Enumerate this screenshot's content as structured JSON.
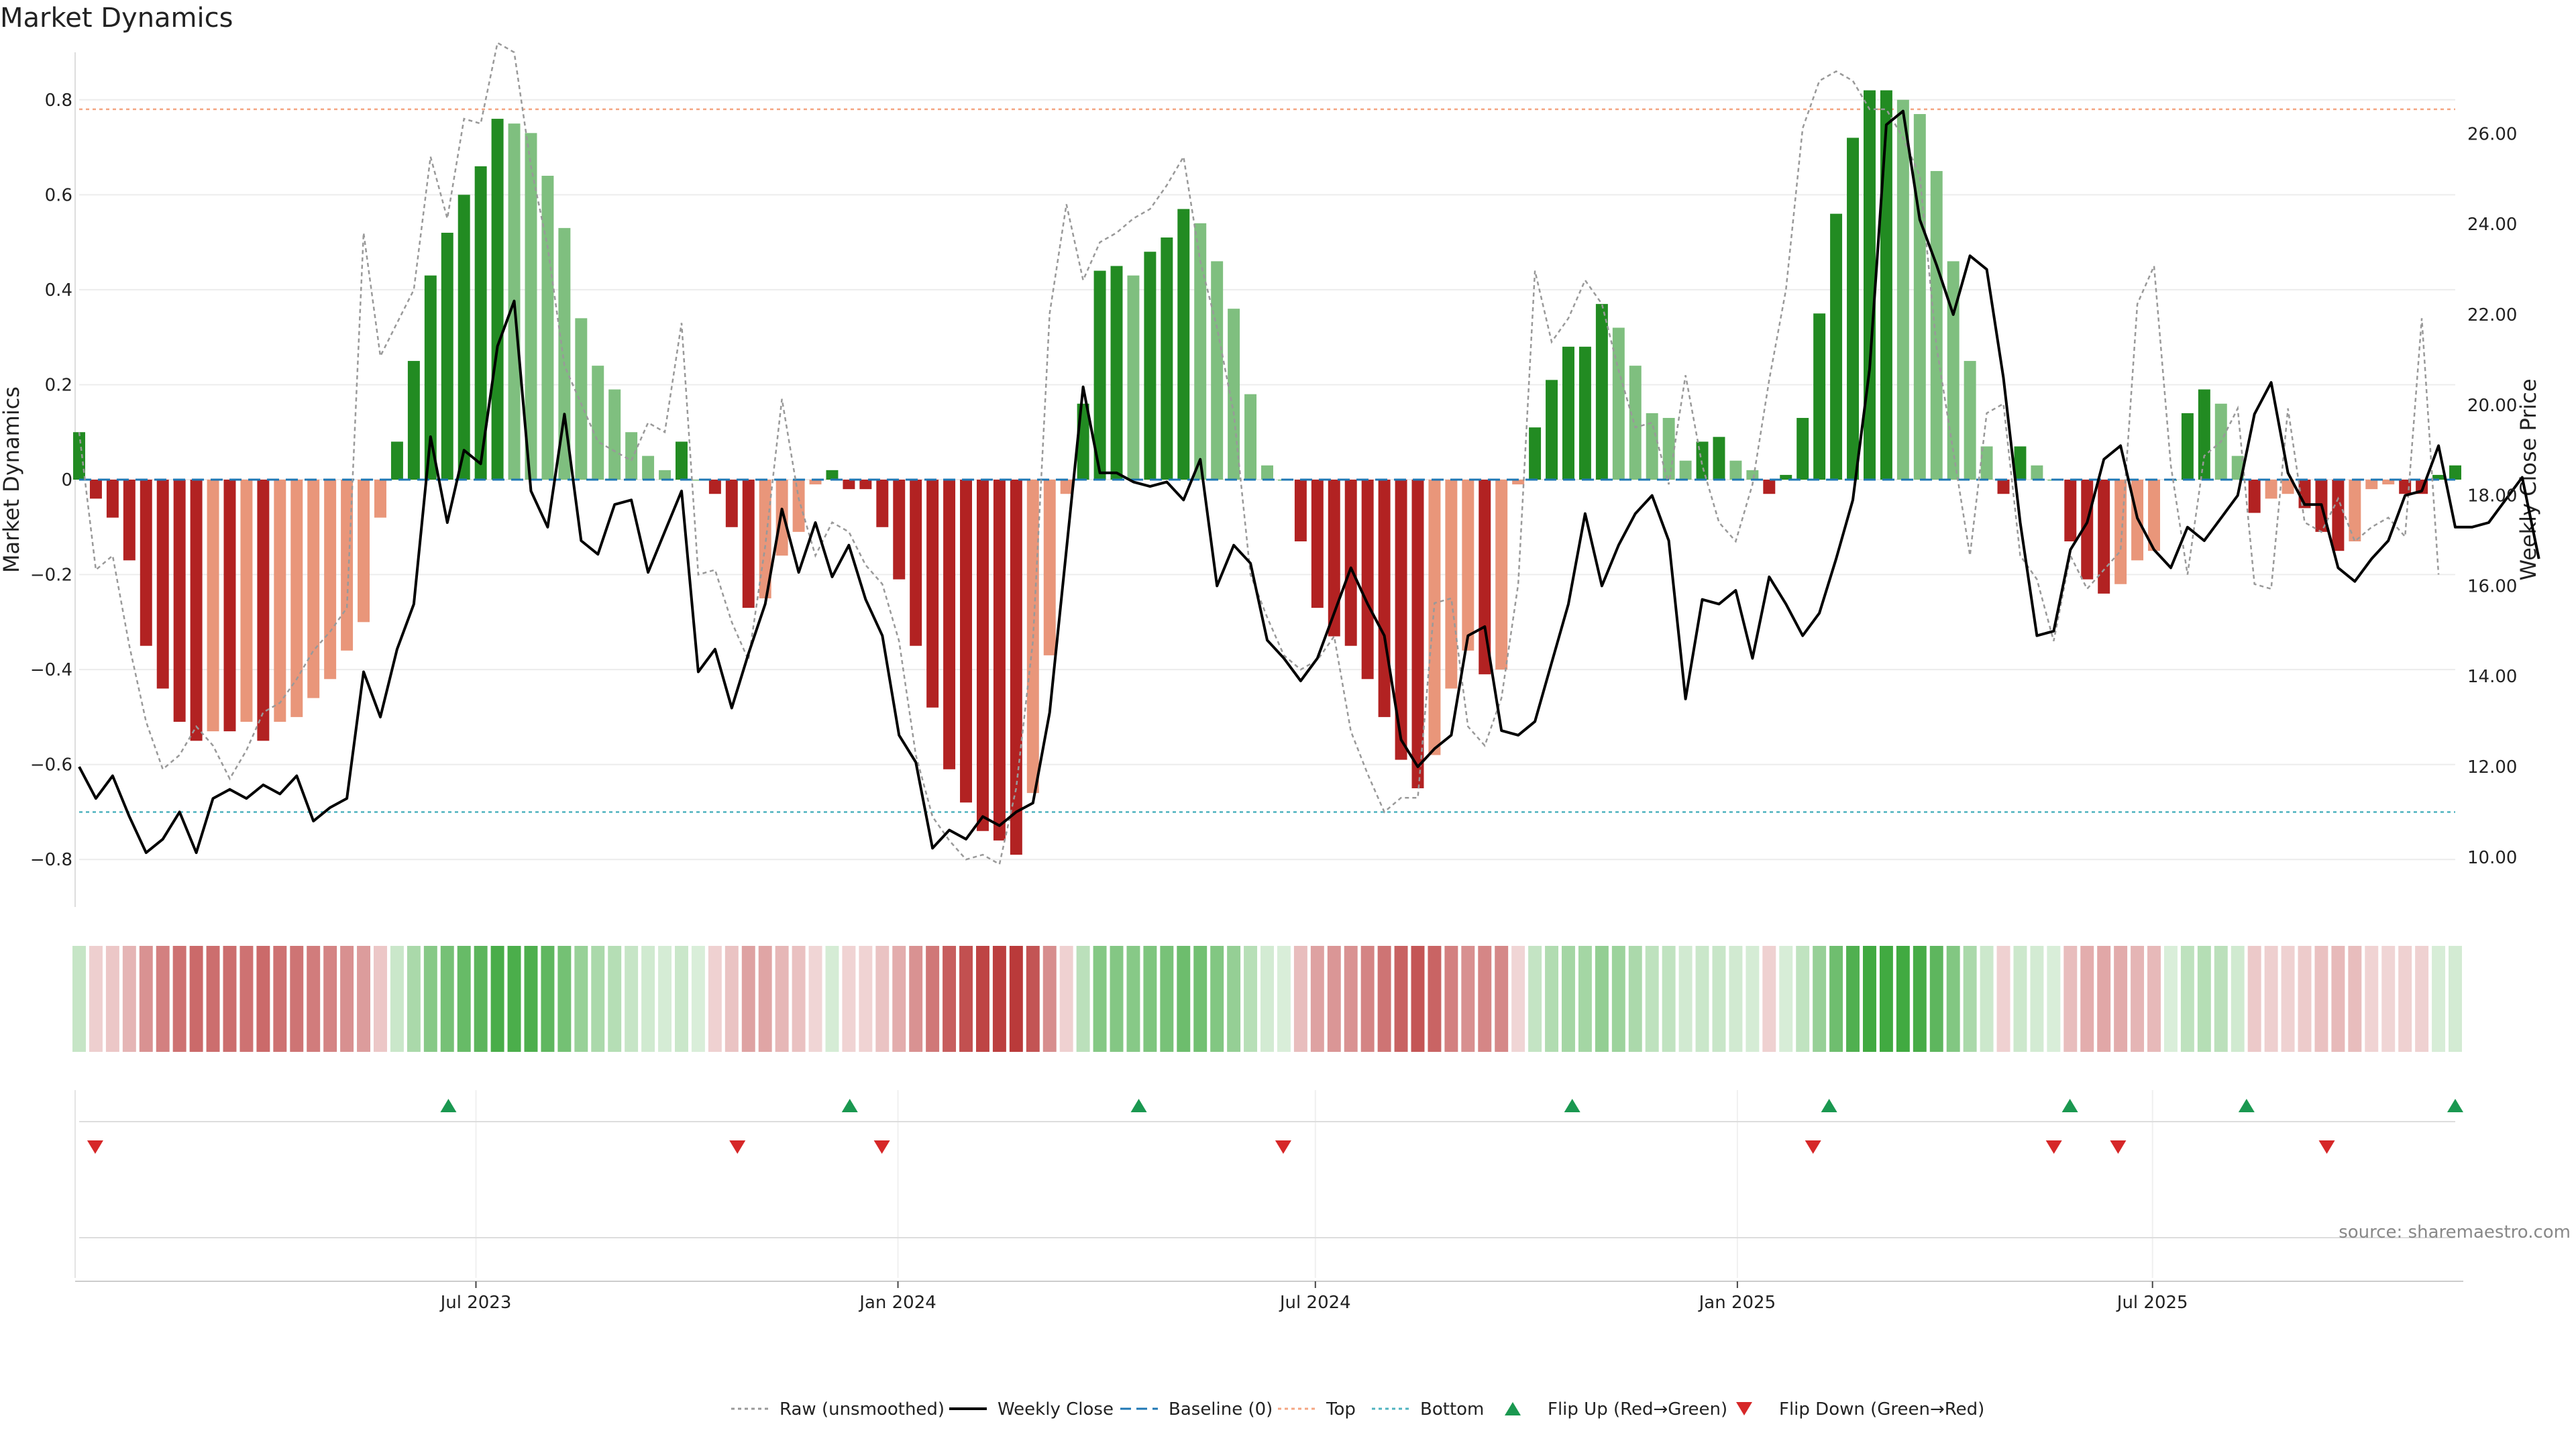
{
  "title": "Market Dynamics",
  "source": "source: sharemaestro.com",
  "chart_data": {
    "type": "bar",
    "title": "Market Dynamics",
    "ylabel_left": "Market Dynamics",
    "ylabel_right": "Weekly Close Price",
    "ylim_left": [
      -0.9,
      0.9
    ],
    "ylim_right": [
      8.9,
      27.8
    ],
    "y_ticks_left": [
      -0.8,
      -0.6,
      -0.4,
      -0.2,
      0,
      0.2,
      0.4,
      0.6,
      0.8
    ],
    "y_ticks_right": [
      10.0,
      12.0,
      14.0,
      16.0,
      18.0,
      20.0,
      22.0,
      24.0,
      26.0
    ],
    "y_tick_labels_left": [
      "−0.8",
      "−0.6",
      "−0.4",
      "−0.2",
      "0",
      "0.2",
      "0.4",
      "0.6",
      "0.8"
    ],
    "y_tick_labels_right": [
      "10.00",
      "12.00",
      "14.00",
      "16.00",
      "18.00",
      "20.00",
      "22.00",
      "24.00",
      "26.00"
    ],
    "x_start": "2023-01-09",
    "x_end": "2025-11-10",
    "x_ticks": [
      {
        "date": "2023-07-01",
        "label": "Jul 2023"
      },
      {
        "date": "2024-01-01",
        "label": "Jan 2024"
      },
      {
        "date": "2024-07-01",
        "label": "Jul 2024"
      },
      {
        "date": "2025-01-01",
        "label": "Jan 2025"
      },
      {
        "date": "2025-07-01",
        "label": "Jul 2025"
      }
    ],
    "top_level": 0.78,
    "bottom_level": -0.7,
    "baseline": 0,
    "grid": true,
    "legend_position": "bottom-center",
    "legend": [
      {
        "label": "Raw (unsmoothed)",
        "kind": "dotted-line",
        "color": "#999999"
      },
      {
        "label": "Weekly Close",
        "kind": "solid-line",
        "color": "#000000"
      },
      {
        "label": "Baseline (0)",
        "kind": "dashed-line",
        "color": "#1f77b4"
      },
      {
        "label": "Top",
        "kind": "dotted-line",
        "color": "#f4a582"
      },
      {
        "label": "Bottom",
        "kind": "dotted-line",
        "color": "#4fb3bf"
      },
      {
        "label": "Flip Up (Red→Green)",
        "kind": "triangle-up",
        "color": "#1a9850"
      },
      {
        "label": "Flip Down (Green→Red)",
        "kind": "triangle-down",
        "color": "#d62728"
      }
    ],
    "colors": {
      "green_rising": "#228b22",
      "green_falling": "#7fbf7f",
      "red_falling": "#b22222",
      "red_rising": "#e9967a",
      "weekly_close": "#000000",
      "raw": "#999999",
      "baseline": "#1f77b4",
      "top": "#f4a582",
      "bottom": "#4fb3bf",
      "flip_up": "#1a9850",
      "flip_down": "#d62728"
    },
    "series": [
      {
        "name": "Market Dynamics",
        "values": [
          0.1,
          -0.04,
          -0.08,
          -0.17,
          -0.35,
          -0.44,
          -0.51,
          -0.55,
          -0.53,
          -0.53,
          -0.51,
          -0.55,
          -0.51,
          -0.5,
          -0.46,
          -0.42,
          -0.36,
          -0.3,
          -0.08,
          0.08,
          0.25,
          0.43,
          0.52,
          0.6,
          0.66,
          0.76,
          0.75,
          0.73,
          0.64,
          0.53,
          0.34,
          0.24,
          0.19,
          0.1,
          0.05,
          0.02,
          0.08,
          0.0,
          -0.03,
          -0.1,
          -0.27,
          -0.25,
          -0.16,
          -0.11,
          -0.01,
          0.02,
          -0.02,
          -0.02,
          -0.1,
          -0.21,
          -0.35,
          -0.48,
          -0.61,
          -0.68,
          -0.74,
          -0.76,
          -0.79,
          -0.66,
          -0.37,
          -0.03,
          0.16,
          0.44,
          0.45,
          0.43,
          0.48,
          0.51,
          0.57,
          0.54,
          0.46,
          0.36,
          0.18,
          0.03,
          0.0,
          -0.13,
          -0.27,
          -0.33,
          -0.35,
          -0.42,
          -0.5,
          -0.59,
          -0.65,
          -0.58,
          -0.44,
          -0.36,
          -0.41,
          -0.4,
          -0.01,
          0.11,
          0.21,
          0.28,
          0.28,
          0.37,
          0.32,
          0.24,
          0.14,
          0.13,
          0.04,
          0.08,
          0.09,
          0.04,
          0.02,
          -0.03,
          0.01,
          0.13,
          0.35,
          0.56,
          0.72,
          0.82,
          0.82,
          0.8,
          0.77,
          0.65,
          0.46,
          0.25,
          0.07,
          -0.03,
          0.07,
          0.03,
          0.0,
          -0.13,
          -0.21,
          -0.24,
          -0.22,
          -0.17,
          -0.15,
          0.0,
          0.14,
          0.19,
          0.16,
          0.05,
          -0.07,
          -0.04,
          -0.03,
          -0.06,
          -0.11,
          -0.15,
          -0.13,
          -0.02,
          -0.01,
          -0.03,
          -0.03,
          0.01,
          0.03
        ]
      },
      {
        "name": "Weekly Close",
        "values": [
          12.0,
          11.3,
          11.8,
          10.9,
          10.1,
          10.4,
          11.0,
          10.1,
          11.3,
          11.5,
          11.3,
          11.6,
          11.4,
          11.8,
          10.8,
          11.1,
          11.3,
          14.1,
          13.1,
          14.6,
          15.6,
          19.3,
          17.4,
          19.0,
          18.7,
          21.3,
          22.3,
          18.1,
          17.3,
          19.8,
          17.0,
          16.7,
          17.8,
          17.9,
          16.3,
          17.2,
          18.1,
          14.1,
          14.6,
          13.3,
          14.5,
          15.6,
          17.7,
          16.3,
          17.4,
          16.2,
          16.9,
          15.7,
          14.9,
          12.7,
          12.1,
          10.2,
          10.6,
          10.4,
          10.9,
          10.7,
          11.0,
          11.2,
          13.2,
          16.8,
          20.4,
          18.5,
          18.5,
          18.3,
          18.2,
          18.3,
          17.9,
          18.8,
          16.0,
          16.9,
          16.5,
          14.8,
          14.4,
          13.9,
          14.4,
          15.4,
          16.4,
          15.6,
          14.9,
          12.6,
          12.0,
          12.4,
          12.7,
          14.9,
          15.1,
          12.8,
          12.7,
          13.0,
          14.3,
          15.6,
          17.6,
          16.0,
          16.9,
          17.6,
          18.0,
          17.0,
          13.5,
          15.7,
          15.6,
          15.9,
          14.4,
          16.2,
          15.6,
          14.9,
          15.4,
          16.6,
          17.9,
          20.8,
          26.2,
          26.5,
          24.1,
          23.1,
          22.0,
          23.3,
          23.0,
          20.6,
          17.4,
          14.9,
          15.0,
          16.8,
          17.4,
          18.8,
          19.1,
          17.5,
          16.8,
          16.4,
          17.3,
          17.0,
          17.5,
          18.0,
          19.8,
          20.5,
          18.5,
          17.8,
          17.8,
          16.4,
          16.1,
          16.6,
          17.0,
          18.0,
          18.1,
          19.1,
          17.3,
          17.3,
          17.4,
          17.9,
          18.4,
          16.6
        ]
      },
      {
        "name": "Raw (unsmoothed)",
        "values": [
          0.1,
          -0.19,
          -0.16,
          -0.35,
          -0.51,
          -0.61,
          -0.58,
          -0.52,
          -0.56,
          -0.63,
          -0.57,
          -0.49,
          -0.47,
          -0.42,
          -0.36,
          -0.32,
          -0.27,
          0.52,
          0.26,
          0.33,
          0.4,
          0.68,
          0.55,
          0.76,
          0.75,
          0.92,
          0.9,
          0.66,
          0.49,
          0.24,
          0.16,
          0.08,
          0.06,
          0.04,
          0.12,
          0.1,
          0.33,
          -0.2,
          -0.19,
          -0.3,
          -0.38,
          -0.14,
          0.17,
          -0.04,
          -0.16,
          -0.09,
          -0.11,
          -0.18,
          -0.22,
          -0.34,
          -0.58,
          -0.71,
          -0.76,
          -0.8,
          -0.79,
          -0.81,
          -0.65,
          -0.34,
          0.35,
          0.58,
          0.42,
          0.5,
          0.52,
          0.55,
          0.57,
          0.62,
          0.68,
          0.46,
          0.32,
          0.14,
          -0.2,
          -0.29,
          -0.37,
          -0.4,
          -0.38,
          -0.33,
          -0.53,
          -0.62,
          -0.7,
          -0.67,
          -0.67,
          -0.26,
          -0.25,
          -0.52,
          -0.56,
          -0.46,
          -0.22,
          0.44,
          0.29,
          0.34,
          0.42,
          0.37,
          0.23,
          0.11,
          0.12,
          -0.01,
          0.22,
          0.03,
          -0.09,
          -0.13,
          -0.01,
          0.21,
          0.4,
          0.74,
          0.84,
          0.86,
          0.84,
          0.78,
          0.78,
          0.72,
          0.64,
          0.28,
          0.06,
          -0.16,
          0.14,
          0.16,
          -0.16,
          -0.21,
          -0.34,
          -0.16,
          -0.23,
          -0.19,
          -0.15,
          0.37,
          0.45,
          0.03,
          -0.2,
          0.05,
          0.08,
          0.15,
          -0.22,
          -0.23,
          0.15,
          -0.09,
          -0.11,
          -0.04,
          -0.13,
          -0.1,
          -0.08,
          -0.12,
          0.34,
          -0.2
        ]
      }
    ],
    "flip_up_dates": [
      "2023-06-19",
      "2023-12-11",
      "2024-04-15",
      "2024-10-21",
      "2025-02-10",
      "2025-05-26",
      "2025-08-11",
      "2025-11-10"
    ],
    "flip_down_dates": [
      "2023-01-16",
      "2023-10-23",
      "2023-12-25",
      "2024-06-17",
      "2025-02-03",
      "2025-05-19",
      "2025-06-16",
      "2025-09-15"
    ]
  }
}
